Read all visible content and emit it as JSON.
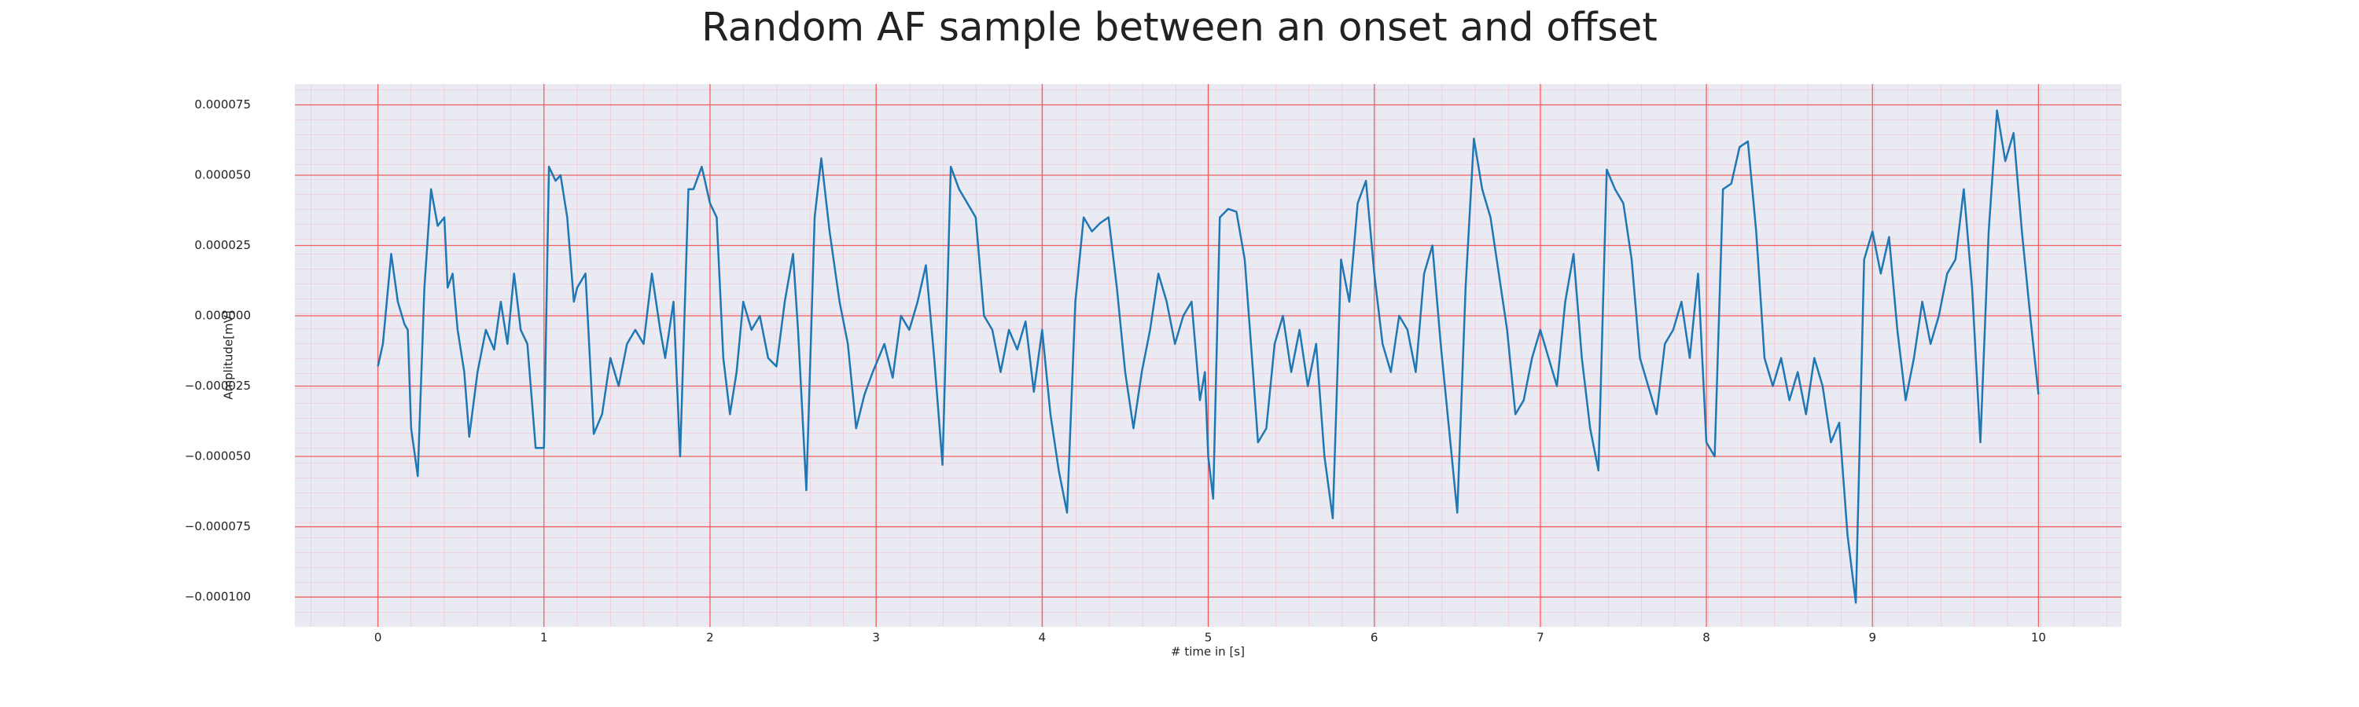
{
  "chart_data": {
    "type": "line",
    "title": "Random AF sample between an onset and offset",
    "xlabel": "# time in [s]",
    "ylabel": "Amplitude[mV]",
    "color": "#1f77b4",
    "grid": true,
    "grid_color": "#f06060",
    "background": "#eaeaf2",
    "xlim": [
      -0.5,
      10.5
    ],
    "xticks": [
      0,
      1,
      2,
      3,
      4,
      5,
      6,
      7,
      8,
      9,
      10
    ],
    "ylim": [
      -0.0001106,
      8.24e-05
    ],
    "yticks": [
      {
        "value": 7.5e-05,
        "label": "0.000075"
      },
      {
        "value": 5e-05,
        "label": "0.000050"
      },
      {
        "value": 2.5e-05,
        "label": "0.000025"
      },
      {
        "value": 0,
        "label": "0.000000"
      },
      {
        "value": -2.5e-05,
        "label": "−0.000025"
      },
      {
        "value": -5e-05,
        "label": "−0.000050"
      },
      {
        "value": -7.5e-05,
        "label": "−0.000075"
      },
      {
        "value": -0.0001,
        "label": "−0.000100"
      }
    ],
    "x": [
      0,
      0.03,
      0.08,
      0.12,
      0.16,
      0.18,
      0.2,
      0.24,
      0.28,
      0.32,
      0.36,
      0.4,
      0.42,
      0.45,
      0.48,
      0.52,
      0.55,
      0.6,
      0.65,
      0.7,
      0.74,
      0.78,
      0.82,
      0.86,
      0.9,
      0.95,
      1.0,
      1.03,
      1.07,
      1.1,
      1.14,
      1.18,
      1.2,
      1.25,
      1.3,
      1.35,
      1.4,
      1.45,
      1.5,
      1.55,
      1.6,
      1.65,
      1.7,
      1.73,
      1.78,
      1.82,
      1.87,
      1.9,
      1.95,
      2.0,
      2.04,
      2.08,
      2.12,
      2.16,
      2.2,
      2.25,
      2.3,
      2.35,
      2.4,
      2.45,
      2.5,
      2.53,
      2.58,
      2.63,
      2.67,
      2.72,
      2.78,
      2.83,
      2.88,
      2.93,
      2.98,
      3.05,
      3.1,
      3.15,
      3.2,
      3.25,
      3.3,
      3.35,
      3.4,
      3.45,
      3.5,
      3.55,
      3.6,
      3.65,
      3.7,
      3.75,
      3.8,
      3.85,
      3.9,
      3.95,
      4.0,
      4.05,
      4.1,
      4.15,
      4.2,
      4.25,
      4.3,
      4.35,
      4.4,
      4.45,
      4.5,
      4.55,
      4.6,
      4.65,
      4.7,
      4.75,
      4.8,
      4.85,
      4.9,
      4.95,
      4.98,
      5.0,
      5.03,
      5.07,
      5.12,
      5.17,
      5.22,
      5.27,
      5.3,
      5.35,
      5.4,
      5.45,
      5.5,
      5.55,
      5.6,
      5.65,
      5.7,
      5.75,
      5.8,
      5.85,
      5.9,
      5.95,
      6.0,
      6.05,
      6.1,
      6.15,
      6.2,
      6.25,
      6.3,
      6.35,
      6.4,
      6.45,
      6.5,
      6.55,
      6.6,
      6.65,
      6.7,
      6.75,
      6.8,
      6.85,
      6.9,
      6.95,
      7.0,
      7.05,
      7.1,
      7.15,
      7.2,
      7.25,
      7.3,
      7.35,
      7.4,
      7.45,
      7.5,
      7.55,
      7.6,
      7.65,
      7.7,
      7.75,
      7.8,
      7.85,
      7.9,
      7.95,
      8.0,
      8.05,
      8.1,
      8.15,
      8.2,
      8.25,
      8.3,
      8.35,
      8.4,
      8.45,
      8.5,
      8.55,
      8.6,
      8.65,
      8.7,
      8.75,
      8.8,
      8.85,
      8.9,
      8.95,
      9.0,
      9.05,
      9.1,
      9.15,
      9.2,
      9.25,
      9.3,
      9.35,
      9.4,
      9.45,
      9.5,
      9.55,
      9.6,
      9.65,
      9.7,
      9.75,
      9.8,
      9.85,
      9.9,
      9.95,
      10.0
    ],
    "values": [
      -1.8e-05,
      -1e-05,
      2.2e-05,
      5e-06,
      -3e-06,
      -5e-06,
      -4e-05,
      -5.7e-05,
      1e-05,
      4.5e-05,
      3.2e-05,
      3.5e-05,
      1e-05,
      1.5e-05,
      -5e-06,
      -2e-05,
      -4.3e-05,
      -2e-05,
      -5e-06,
      -1.2e-05,
      5e-06,
      -1e-05,
      1.5e-05,
      -5e-06,
      -1e-05,
      -4.7e-05,
      -4.7e-05,
      5.3e-05,
      4.8e-05,
      5e-05,
      3.5e-05,
      5e-06,
      1e-05,
      1.5e-05,
      -4.2e-05,
      -3.5e-05,
      -1.5e-05,
      -2.5e-05,
      -1e-05,
      -5e-06,
      -1e-05,
      1.5e-05,
      -5e-06,
      -1.5e-05,
      5e-06,
      -5e-05,
      4.5e-05,
      4.5e-05,
      5.3e-05,
      4e-05,
      3.5e-05,
      -1.5e-05,
      -3.5e-05,
      -2e-05,
      5e-06,
      -5e-06,
      0,
      -1.5e-05,
      -1.8e-05,
      5e-06,
      2.2e-05,
      -5e-06,
      -6.2e-05,
      3.5e-05,
      5.6e-05,
      3e-05,
      5e-06,
      -1e-05,
      -4e-05,
      -2.8e-05,
      -2e-05,
      -1e-05,
      -2.2e-05,
      0,
      -5e-06,
      5e-06,
      1.8e-05,
      -1.5e-05,
      -5.3e-05,
      5.3e-05,
      4.5e-05,
      4e-05,
      3.5e-05,
      0,
      -5e-06,
      -2e-05,
      -5e-06,
      -1.2e-05,
      -2e-06,
      -2.7e-05,
      -5e-06,
      -3.5e-05,
      -5.5e-05,
      -7e-05,
      5e-06,
      3.5e-05,
      3e-05,
      3.3e-05,
      3.5e-05,
      1e-05,
      -2e-05,
      -4e-05,
      -2e-05,
      -5e-06,
      1.5e-05,
      5e-06,
      -1e-05,
      0,
      5e-06,
      -3e-05,
      -2e-05,
      -5e-05,
      -6.5e-05,
      3.5e-05,
      3.8e-05,
      3.7e-05,
      2e-05,
      -2e-05,
      -4.5e-05,
      -4e-05,
      -1e-05,
      0,
      -2e-05,
      -5e-06,
      -2.5e-05,
      -1e-05,
      -5e-05,
      -7.2e-05,
      2e-05,
      5e-06,
      4e-05,
      4.8e-05,
      1.5e-05,
      -1e-05,
      -2e-05,
      0,
      -5e-06,
      -2e-05,
      1.5e-05,
      2.5e-05,
      -1e-05,
      -4e-05,
      -7e-05,
      1e-05,
      6.3e-05,
      4.5e-05,
      3.5e-05,
      1.5e-05,
      -5e-06,
      -3.5e-05,
      -3e-05,
      -1.5e-05,
      -5e-06,
      -1.5e-05,
      -2.5e-05,
      5e-06,
      2.2e-05,
      -1.5e-05,
      -4e-05,
      -5.5e-05,
      5.2e-05,
      4.5e-05,
      4e-05,
      2e-05,
      -1.5e-05,
      -2.5e-05,
      -3.5e-05,
      -1e-05,
      -5e-06,
      5e-06,
      -1.5e-05,
      1.5e-05,
      -4.5e-05,
      -5e-05,
      4.5e-05,
      4.7e-05,
      6e-05,
      6.2e-05,
      3e-05,
      -1.5e-05,
      -2.5e-05,
      -1.5e-05,
      -3e-05,
      -2e-05,
      -3.5e-05,
      -1.5e-05,
      -2.5e-05,
      -4.5e-05,
      -3.8e-05,
      -7.8e-05,
      -0.000102,
      2e-05,
      3e-05,
      1.5e-05,
      2.8e-05,
      -5e-06,
      -3e-05,
      -1.5e-05,
      5e-06,
      -1e-05,
      0,
      1.5e-05,
      2e-05,
      4.5e-05,
      1e-05,
      -4.5e-05,
      3e-05,
      7.3e-05,
      5.5e-05,
      6.5e-05,
      3e-05,
      0,
      -2.8e-05
    ]
  }
}
